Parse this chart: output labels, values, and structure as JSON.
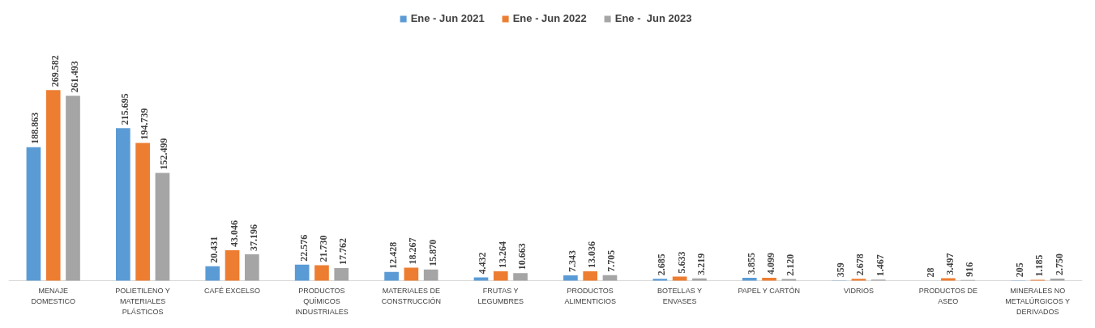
{
  "chart_data": {
    "type": "bar",
    "categories": [
      "MENAJE DOMESTICO",
      "POLIETILENO Y MATERIALES PLÁSTICOS",
      "CAFÉ EXCELSO",
      "PRODUCTOS QUÍMICOS INDUSTRIALES",
      "MATERIALES DE CONSTRUCCIÓN",
      "FRUTAS Y LEGUMBRES",
      "PRODUCTOS ALIMENTICIOS",
      "BOTELLAS Y ENVASES",
      "PAPEL Y CARTÓN",
      "VIDRIOS",
      "PRODUCTOS DE ASEO",
      "MINERALES NO METALÚRGICOS Y DERIVADOS"
    ],
    "series": [
      {
        "name": "Ene - Jun 2021",
        "color": "#5b9bd5",
        "values": [
          188863,
          215695,
          20431,
          22576,
          12428,
          4432,
          7343,
          2685,
          3855,
          359,
          28,
          205
        ],
        "value_labels": [
          "188.863",
          "215.695",
          "20.431",
          "22.576",
          "12.428",
          "4.432",
          "7.343",
          "2.685",
          "3.855",
          "359",
          "28",
          "205"
        ]
      },
      {
        "name": "Ene - Jun 2022",
        "color": "#ed7d31",
        "values": [
          269582,
          194739,
          43046,
          21730,
          18267,
          13264,
          13036,
          5633,
          4099,
          2678,
          3497,
          1185
        ],
        "value_labels": [
          "269.582",
          "194.739",
          "43.046",
          "21.730",
          "18.267",
          "13.264",
          "13.036",
          "5.633",
          "4.099",
          "2.678",
          "3.497",
          "1.185"
        ]
      },
      {
        "name": "Ene -  Jun 2023",
        "color": "#a5a5a5",
        "values": [
          261493,
          152499,
          37196,
          17762,
          15870,
          10663,
          7705,
          3219,
          2120,
          1467,
          916,
          2750
        ],
        "value_labels": [
          "261.493",
          "152.499",
          "37.196",
          "17.762",
          "15.870",
          "10.663",
          "7.705",
          "3.219",
          "2.120",
          "1.467",
          "916",
          "2.750"
        ]
      }
    ],
    "legend": "top",
    "grid": false,
    "tick_labels": "x"
  }
}
